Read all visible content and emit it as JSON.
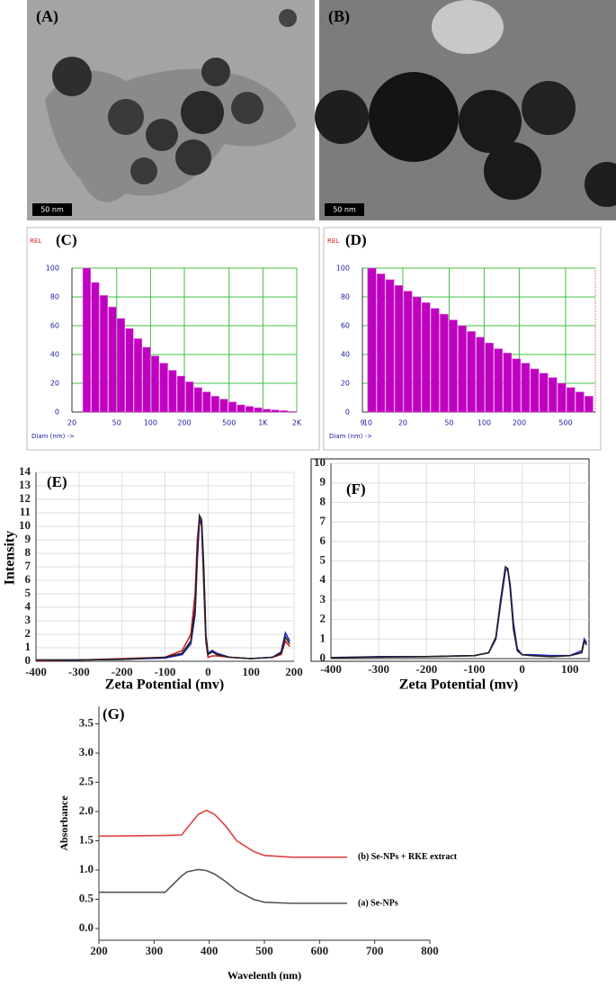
{
  "images": [
    {
      "label": "(A)",
      "scale": "50 nm"
    },
    {
      "label": "(B)",
      "scale": "50 nm"
    }
  ],
  "chart_data": [
    {
      "type": "histogram",
      "label": "(C)",
      "ylabel": "REL",
      "xlabel": "Diam (nm) ->",
      "color": "#c000c0",
      "xscale": "log",
      "xlim": [
        20,
        2000
      ],
      "xticks": [
        20,
        50,
        100,
        200,
        500,
        {
          "value": 1000,
          "label": "1K"
        },
        {
          "value": 2000,
          "label": "2K"
        }
      ],
      "ylim": [
        0,
        100
      ],
      "yticks": [
        0,
        20,
        40,
        60,
        80,
        100
      ],
      "grid": true,
      "bins": [
        25,
        29.8,
        35.5,
        42.3,
        50.4,
        60.1,
        71.6,
        85.4,
        101.8,
        121,
        145,
        173,
        206,
        245,
        292,
        348,
        415,
        495,
        590,
        703,
        838,
        999,
        1190,
        1419,
        1691,
        2016
      ],
      "values": [
        100,
        90,
        81,
        73,
        65,
        58,
        51,
        45,
        39,
        34,
        29,
        25,
        21,
        17,
        14,
        11,
        9,
        7,
        5,
        4,
        3,
        2,
        1.5,
        1,
        0.5
      ]
    },
    {
      "type": "histogram",
      "label": "(D)",
      "ylabel": "REL",
      "xlabel": "Diam (nm) ->",
      "color": "#c000c0",
      "xscale": "log",
      "xlim": [
        9,
        900
      ],
      "xticks": [
        9,
        10,
        20,
        50,
        100,
        200,
        500
      ],
      "ylim": [
        0,
        100
      ],
      "yticks": [
        0,
        20,
        40,
        60,
        80,
        100
      ],
      "grid": true,
      "bins": [
        10,
        12.0,
        14.3,
        17.1,
        20.4,
        24.4,
        29.2,
        34.9,
        41.8,
        50.0,
        59.8,
        71.5,
        85.5,
        102,
        122,
        146,
        175,
        209,
        250,
        299,
        358,
        428,
        512,
        612,
        732,
        876
      ],
      "values": [
        100,
        96,
        92,
        88,
        84,
        80,
        76,
        72,
        68,
        64,
        60,
        56,
        52,
        48,
        44,
        41,
        37,
        34,
        30,
        27,
        24,
        20,
        17,
        14,
        11
      ]
    },
    {
      "type": "line",
      "label": "(E)",
      "ylabel": "Intensity",
      "xlabel": "Zeta Potential (mv)",
      "xlim": [
        -400,
        200
      ],
      "xticks": [
        -400,
        -300,
        -200,
        -100,
        0,
        100,
        200
      ],
      "ylim": [
        0,
        14
      ],
      "yticks": [
        0,
        1,
        2,
        3,
        4,
        5,
        6,
        7,
        8,
        9,
        10,
        11,
        12,
        13,
        14
      ],
      "grid": true,
      "x": [
        -400,
        -300,
        -200,
        -100,
        -60,
        -40,
        -30,
        -25,
        -20,
        -15,
        -10,
        -5,
        0,
        10,
        20,
        50,
        100,
        150,
        170,
        180,
        190
      ],
      "series": [
        {
          "color": "#d02020",
          "values": [
            0.05,
            0.1,
            0.2,
            0.3,
            0.8,
            2,
            5,
            9,
            10.6,
            10,
            5.5,
            1.5,
            0.3,
            0.4,
            0.4,
            0.3,
            0.2,
            0.3,
            0.5,
            1.5,
            1.1
          ]
        },
        {
          "color": "#2020c0",
          "values": [
            0.1,
            0.1,
            0.15,
            0.25,
            0.5,
            1.3,
            3.5,
            7.5,
            10.5,
            10.2,
            6.5,
            1.8,
            0.6,
            0.8,
            0.6,
            0.3,
            0.2,
            0.3,
            0.7,
            2.1,
            1.5
          ]
        },
        {
          "color": "#222222",
          "values": [
            0.1,
            0.1,
            0.15,
            0.3,
            0.6,
            1.5,
            4,
            8,
            10.8,
            10.5,
            7,
            2,
            0.5,
            0.7,
            0.5,
            0.3,
            0.2,
            0.3,
            0.6,
            1.8,
            1.3
          ]
        }
      ]
    },
    {
      "type": "line",
      "label": "(F)",
      "xlabel": "Zeta Potential (mv)",
      "xlim": [
        -400,
        140
      ],
      "xticks": [
        -400,
        -300,
        -200,
        -100,
        0,
        100
      ],
      "ylim": [
        0,
        10
      ],
      "yticks": [
        0,
        1,
        2,
        3,
        4,
        5,
        6,
        7,
        8,
        9,
        10
      ],
      "grid": true,
      "x": [
        -400,
        -300,
        -200,
        -100,
        -70,
        -55,
        -45,
        -35,
        -30,
        -25,
        -18,
        -10,
        0,
        20,
        60,
        100,
        125,
        130,
        135
      ],
      "series": [
        {
          "color": "#2020c0",
          "values": [
            0.05,
            0.1,
            0.1,
            0.15,
            0.3,
            1,
            2.8,
            4.5,
            4.6,
            3.8,
            1.8,
            0.5,
            0.2,
            0.2,
            0.15,
            0.15,
            0.4,
            1,
            0.8
          ]
        },
        {
          "color": "#222222",
          "values": [
            0.05,
            0.08,
            0.1,
            0.15,
            0.3,
            1.1,
            3,
            4.7,
            4.6,
            3.6,
            1.5,
            0.4,
            0.2,
            0.15,
            0.1,
            0.15,
            0.3,
            0.9,
            0.7
          ]
        }
      ]
    },
    {
      "type": "line",
      "label": "(G)",
      "ylabel": "Absorbance",
      "xlabel": "Wavelenth (nm)",
      "xlim": [
        200,
        800
      ],
      "xticks": [
        200,
        300,
        400,
        500,
        600,
        700,
        800
      ],
      "ylim": [
        -0.2,
        3.8
      ],
      "yticks": [
        {
          "value": 0,
          "label": "0.0"
        },
        0.5,
        {
          "value": 1,
          "label": "1.0"
        },
        1.5,
        {
          "value": 2,
          "label": "2.0"
        },
        2.5,
        {
          "value": 3,
          "label": "3.0"
        },
        3.5
      ],
      "grid": false,
      "x": [
        200,
        320,
        350,
        360,
        380,
        395,
        410,
        430,
        450,
        480,
        500,
        550,
        650
      ],
      "series": [
        {
          "name": "(b) Se-NPs + RKE extract",
          "color": "#e04040",
          "values": [
            1.58,
            1.59,
            1.6,
            1.72,
            1.95,
            2.02,
            1.95,
            1.75,
            1.5,
            1.32,
            1.25,
            1.22,
            1.22
          ]
        },
        {
          "name": "(a) Se-NPs",
          "color": "#555555",
          "values": [
            0.62,
            0.62,
            0.9,
            0.97,
            1.01,
            0.99,
            0.93,
            0.8,
            0.65,
            0.5,
            0.45,
            0.43,
            0.43
          ]
        }
      ]
    }
  ]
}
